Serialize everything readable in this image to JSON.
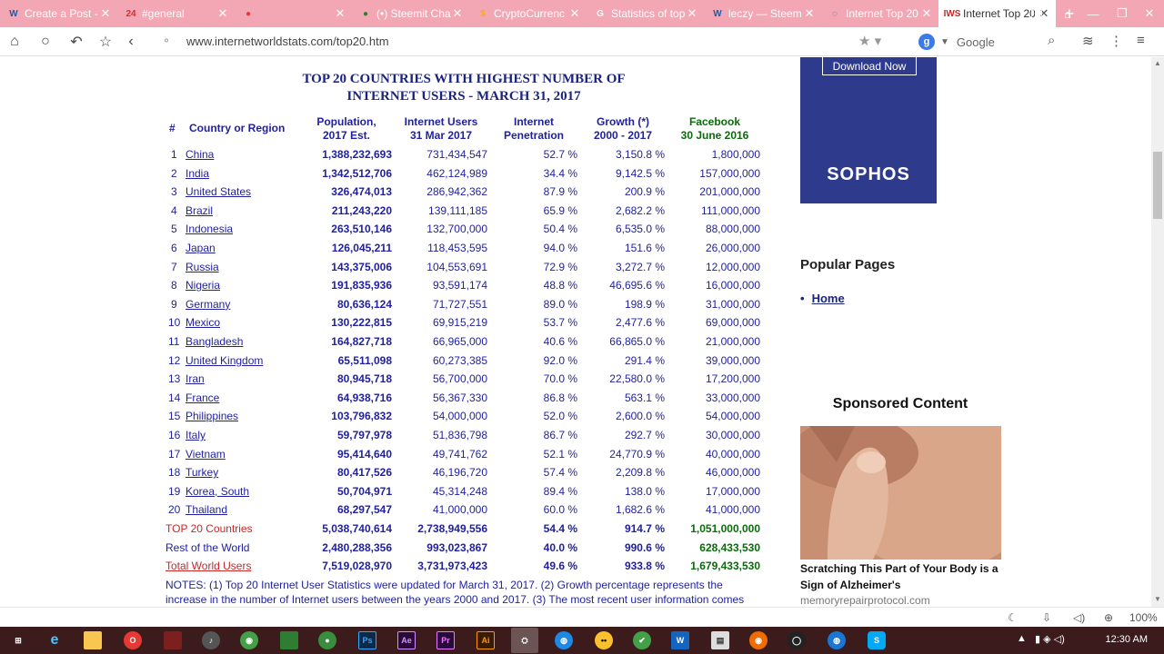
{
  "tabs": [
    {
      "title": "Create a Post -",
      "icon": "steemit-icon",
      "icon_text": "W",
      "icon_color": "#1a5fb4"
    },
    {
      "title": "#general",
      "icon": "chat-icon",
      "icon_text": "24",
      "icon_color": "#d32f2f"
    },
    {
      "title": "",
      "icon": "record-icon",
      "icon_text": "●",
      "icon_color": "#e53935"
    },
    {
      "title": "(•) Steemit Cha",
      "icon": "chat-bubble-icon",
      "icon_text": "●",
      "icon_color": "#2e7d32"
    },
    {
      "title": "CryptoCurrenc",
      "icon": "dollar-icon",
      "icon_text": "$",
      "icon_color": "#f9a825"
    },
    {
      "title": "Statistics of top",
      "icon": "google-icon",
      "icon_text": "G",
      "icon_color": "#ffffff"
    },
    {
      "title": "leczy — Steem",
      "icon": "steemit-icon",
      "icon_text": "W",
      "icon_color": "#1a5fb4"
    },
    {
      "title": "Internet Top 20",
      "icon": "loading-icon",
      "icon_text": "◌",
      "icon_color": "#1565c0"
    },
    {
      "title": "Internet Top 20",
      "icon": "iws-icon",
      "icon_text": "IWS",
      "icon_color": "#c62828",
      "active": true
    }
  ],
  "url": "www.internetworldstats.com/top20.htm",
  "search_engine": "Google",
  "title_line1": "TOP 20 COUNTRIES WITH HIGHEST NUMBER OF",
  "title_line2": "INTERNET USERS - MARCH 31, 2017",
  "headers": {
    "rank": "#",
    "country": "Country or Region",
    "pop1": "Population,",
    "pop2": "2017 Est.",
    "users1": "Internet Users",
    "users2": "31 Mar 2017",
    "pen1": "Internet",
    "pen2": "Penetration",
    "growth1": "Growth (*)",
    "growth2": "2000 - 2017",
    "fb1": "Facebook",
    "fb2": "30 June 2016"
  },
  "rows": [
    [
      "1",
      "China",
      "1,388,232,693",
      "731,434,547",
      "52.7 %",
      "3,150.8 %",
      "1,800,000"
    ],
    [
      "2",
      "India",
      "1,342,512,706",
      "462,124,989",
      "34.4 %",
      "9,142.5 %",
      "157,000,000"
    ],
    [
      "3",
      "United States",
      "326,474,013",
      "286,942,362",
      "87.9 %",
      "200.9 %",
      "201,000,000"
    ],
    [
      "4",
      "Brazil",
      "211,243,220",
      "139,111,185",
      "65.9 %",
      "2,682.2 %",
      "111,000,000"
    ],
    [
      "5",
      "Indonesia",
      "263,510,146",
      "132,700,000",
      "50.4 %",
      "6,535.0 %",
      "88,000,000"
    ],
    [
      "6",
      "Japan",
      "126,045,211",
      "118,453,595",
      "94.0 %",
      "151.6 %",
      "26,000,000"
    ],
    [
      "7",
      "Russia",
      "143,375,006",
      "104,553,691",
      "72.9 %",
      "3,272.7 %",
      "12,000,000"
    ],
    [
      "8",
      "Nigeria",
      "191,835,936",
      "93,591,174",
      "48.8 %",
      "46,695.6 %",
      "16,000,000"
    ],
    [
      "9",
      "Germany",
      "80,636,124",
      "71,727,551",
      "89.0 %",
      "198.9 %",
      "31,000,000"
    ],
    [
      "10",
      "Mexico",
      "130,222,815",
      "69,915,219",
      "53.7 %",
      "2,477.6 %",
      "69,000,000"
    ],
    [
      "11",
      "Bangladesh",
      "164,827,718",
      "66,965,000",
      "40.6 %",
      "66,865.0 %",
      "21,000,000"
    ],
    [
      "12",
      "United Kingdom",
      "65,511,098",
      "60,273,385",
      "92.0 %",
      "291.4 %",
      "39,000,000"
    ],
    [
      "13",
      "Iran",
      "80,945,718",
      "56,700,000",
      "70.0 %",
      "22,580.0 %",
      "17,200,000"
    ],
    [
      "14",
      "France",
      "64,938,716",
      "56,367,330",
      "86.8 %",
      "563.1 %",
      "33,000,000"
    ],
    [
      "15",
      "Philippines",
      "103,796,832",
      "54,000,000",
      "52.0 %",
      "2,600.0 %",
      "54,000,000"
    ],
    [
      "16",
      "Italy",
      "59,797,978",
      "51,836,798",
      "86.7 %",
      "292.7 %",
      "30,000,000"
    ],
    [
      "17",
      "Vietnam",
      "95,414,640",
      "49,741,762",
      "52.1 %",
      "24,770.9 %",
      "40,000,000"
    ],
    [
      "18",
      "Turkey",
      "80,417,526",
      "46,196,720",
      "57.4 %",
      "2,209.8 %",
      "46,000,000"
    ],
    [
      "19",
      "Korea, South",
      "50,704,971",
      "45,314,248",
      "89.4 %",
      "138.0 %",
      "17,000,000"
    ],
    [
      "20",
      "Thailand",
      "68,297,547",
      "41,000,000",
      "60.0 %",
      "1,682.6 %",
      "41,000,000"
    ]
  ],
  "summary": [
    [
      "TOP 20 Countries",
      "5,038,740,614",
      "2,738,949,556",
      "54.4 %",
      "914.7 %",
      "1,051,000,000"
    ],
    [
      "Rest of the World",
      "2,480,288,356",
      "993,023,867",
      "40.0 %",
      "990.6 %",
      "628,433,530"
    ],
    [
      "Total World Users",
      "7,519,028,970",
      "3,731,973,423",
      "49.6 %",
      "933.8 %",
      "1,679,433,530"
    ]
  ],
  "notes_line1": "NOTES: (1) Top 20 Internet User Statistics were updated for March 31, 2017. (2) Growth percentage represents the",
  "notes_line2": "increase in the number of Internet users between the years 2000 and 2017. (3) The most recent user information comes",
  "sidebar": {
    "download": "Download Now",
    "sophos": "SOPHOS",
    "popular_title": "Popular Pages",
    "home": "Home",
    "sponsored": "Sponsored Content",
    "ad_caption": "Scratching This Part of Your Body is a Sign of Alzheimer's",
    "ad_source": "memoryrepairprotocol.com"
  },
  "statusbar": {
    "zoom": "100%"
  },
  "taskbar": {
    "clock": "12:30 AM"
  }
}
